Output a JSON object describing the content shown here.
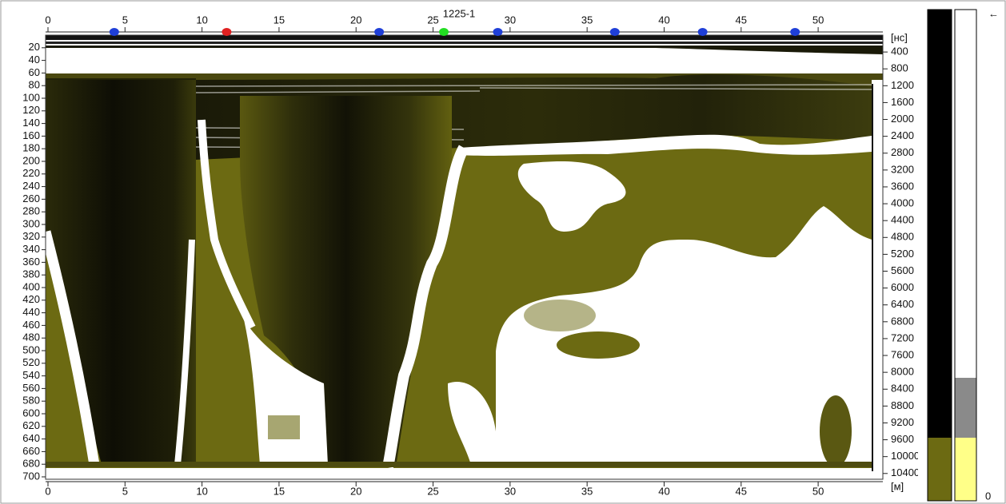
{
  "chart_data": {
    "type": "radargram",
    "title": "1225-1",
    "xlabel": "[м]",
    "y2label": "[нс]",
    "xlim": [
      0,
      54.2
    ],
    "xticks": [
      0,
      5,
      10,
      15,
      20,
      25,
      30,
      35,
      40,
      45,
      50
    ],
    "ylim": [
      0,
      700
    ],
    "yticks": [
      20,
      40,
      60,
      80,
      100,
      120,
      140,
      160,
      180,
      200,
      220,
      240,
      260,
      280,
      300,
      320,
      340,
      360,
      380,
      400,
      420,
      440,
      460,
      480,
      500,
      520,
      540,
      560,
      580,
      600,
      620,
      640,
      660,
      680,
      700
    ],
    "y2lim": [
      0,
      10480
    ],
    "y2ticks": [
      400,
      800,
      1200,
      1600,
      2000,
      2400,
      2800,
      3200,
      3600,
      4000,
      4400,
      4800,
      5200,
      5600,
      6000,
      6400,
      6800,
      7200,
      7600,
      8000,
      8400,
      8800,
      9200,
      9600,
      10000,
      10400
    ],
    "grid": false,
    "markers": [
      {
        "x": 4.3,
        "color": "#1f3fd8"
      },
      {
        "x": 11.6,
        "color": "#e02020"
      },
      {
        "x": 21.5,
        "color": "#1f3fd8"
      },
      {
        "x": 25.7,
        "color": "#22dd22"
      },
      {
        "x": 29.2,
        "color": "#1f3fd8"
      },
      {
        "x": 36.8,
        "color": "#1f3fd8"
      },
      {
        "x": 42.5,
        "color": "#1f3fd8"
      },
      {
        "x": 48.5,
        "color": "#1f3fd8"
      }
    ],
    "scale_top_label": "←",
    "scale_bottom_label": "0"
  }
}
